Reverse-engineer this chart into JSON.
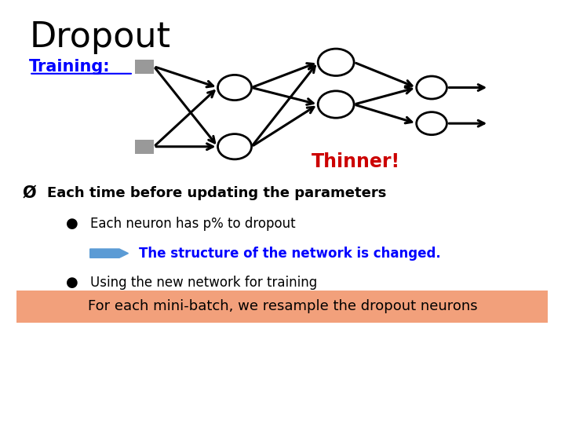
{
  "title": "Dropout",
  "title_color": "#000000",
  "title_fontsize": 32,
  "training_label": "Training:",
  "training_color": "#0000FF",
  "thinner_text": "Thinner!",
  "thinner_color": "#CC0000",
  "bullet1": "Each time before updating the parameters",
  "bullet1_color": "#000000",
  "sub1": "Each neuron has p% to dropout",
  "sub1_color": "#000000",
  "arrow_text": "The structure of the network is changed.",
  "arrow_text_color": "#0000FF",
  "sub2": "Using the new network for training",
  "sub2_color": "#000000",
  "bottom_text": "For each mini-batch, we resample the dropout neurons",
  "bottom_bg": "#F2A07B",
  "bottom_text_color": "#000000",
  "background_color": "#FFFFFF",
  "node_color": "#FFFFFF",
  "node_edge_color": "#000000",
  "square_color": "#999999",
  "line_color": "#000000",
  "arrow_fill_color": "#5B9BD5",
  "lw": 2.2
}
